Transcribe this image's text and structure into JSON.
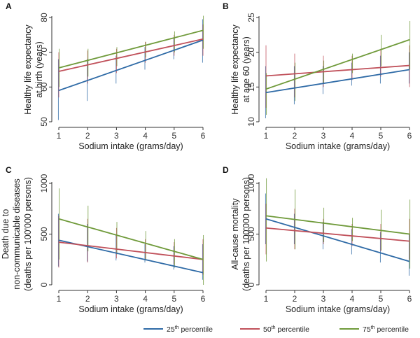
{
  "colors": {
    "p25": "#2e6aa6",
    "p50": "#c0505a",
    "p75": "#6f9a3a",
    "axis": "#333333"
  },
  "legend": {
    "position": "bottom",
    "entries": [
      {
        "key": "p25",
        "num": "25",
        "sup": "th",
        "rest": " percentile"
      },
      {
        "key": "p50",
        "num": "50",
        "sup": "th",
        "rest": " percentile"
      },
      {
        "key": "p75",
        "num": "75",
        "sup": "th",
        "rest": " percentile"
      }
    ]
  },
  "chart_data": [
    {
      "panel": "A",
      "type": "line",
      "xlabel": "Sodium intake (grams/day)",
      "ylabel_lines": [
        "Healthy life expectancy",
        "at birth (years)"
      ],
      "xlim": [
        1,
        6
      ],
      "ylim": [
        50,
        80
      ],
      "xticks": [
        1,
        2,
        3,
        4,
        5,
        6
      ],
      "yticks": [
        50,
        60,
        70,
        80
      ],
      "grid": false,
      "series": [
        {
          "key": "p25",
          "name": "25th percentile",
          "x": [
            1,
            6
          ],
          "y": [
            59,
            73.5
          ],
          "error_bars": [
            [
              1,
              50.5,
              68
            ],
            [
              2,
              56,
              68
            ],
            [
              3,
              61,
              69
            ],
            [
              4,
              65,
              71.5
            ],
            [
              5,
              68,
              74
            ],
            [
              6,
              67,
              79.5
            ]
          ]
        },
        {
          "key": "p50",
          "name": "50th percentile",
          "x": [
            1,
            6
          ],
          "y": [
            64.5,
            73.8
          ],
          "error_bars": [
            [
              1,
              57,
              70
            ],
            [
              2,
              61,
              70.5
            ],
            [
              3,
              64,
              71
            ],
            [
              4,
              67,
              73
            ],
            [
              5,
              69,
              75
            ],
            [
              6,
              69,
              78
            ]
          ]
        },
        {
          "key": "p75",
          "name": "75th percentile",
          "x": [
            1,
            6
          ],
          "y": [
            65.5,
            76.3
          ],
          "error_bars": [
            [
              1,
              60,
              71
            ],
            [
              2,
              63,
              71
            ],
            [
              3,
              66,
              71.5
            ],
            [
              4,
              68.5,
              73
            ],
            [
              5,
              70,
              76
            ],
            [
              6,
              71,
              80.5
            ]
          ]
        }
      ]
    },
    {
      "panel": "B",
      "type": "line",
      "xlabel": "Sodium intake (grams/day)",
      "ylabel_lines": [
        "Healthy life expectancy",
        "at age 60 (years)"
      ],
      "xlim": [
        1,
        6
      ],
      "ylim": [
        10,
        25
      ],
      "xticks": [
        1,
        2,
        3,
        4,
        5,
        6
      ],
      "yticks": [
        10,
        15,
        20,
        25
      ],
      "grid": false,
      "series": [
        {
          "key": "p25",
          "name": "25th percentile",
          "x": [
            1,
            6
          ],
          "y": [
            14.2,
            17.5
          ],
          "error_bars": [
            [
              1,
              10.5,
              18
            ],
            [
              2,
              12.5,
              18
            ],
            [
              3,
              14,
              18
            ],
            [
              4,
              15.2,
              18.5
            ],
            [
              5,
              15.5,
              19.5
            ],
            [
              6,
              15.5,
              20
            ]
          ]
        },
        {
          "key": "p50",
          "name": "50th percentile",
          "x": [
            1,
            6
          ],
          "y": [
            16.6,
            18.1
          ],
          "error_bars": [
            [
              1,
              12,
              21
            ],
            [
              2,
              13.5,
              19.8
            ],
            [
              3,
              15,
              19.5
            ],
            [
              4,
              16,
              19.5
            ],
            [
              5,
              16.5,
              20.5
            ],
            [
              6,
              15,
              21
            ]
          ]
        },
        {
          "key": "p75",
          "name": "75th percentile",
          "x": [
            1,
            6
          ],
          "y": [
            14.7,
            21.8
          ],
          "error_bars": [
            [
              1,
              11,
              17
            ],
            [
              2,
              13,
              18.5
            ],
            [
              3,
              15.5,
              18.8
            ],
            [
              4,
              17,
              19.8
            ],
            [
              5,
              18,
              22.5
            ],
            [
              6,
              17.5,
              24.5
            ]
          ]
        }
      ]
    },
    {
      "panel": "C",
      "type": "line",
      "xlabel": "Sodium intake (grams/day)",
      "ylabel_lines": [
        "Death due to",
        "non-communicable diseases",
        "(deaths per 100'000 persons)"
      ],
      "xlim": [
        1,
        6
      ],
      "ylim": [
        0,
        1000
      ],
      "xticks": [
        1,
        2,
        3,
        4,
        5,
        6
      ],
      "yticks": [
        0,
        500,
        1000
      ],
      "grid": false,
      "series": [
        {
          "key": "p25",
          "name": "25th percentile",
          "x": [
            1,
            6
          ],
          "y": [
            440,
            120
          ],
          "error_bars": [
            [
              1,
              180,
              700
            ],
            [
              2,
              230,
              600
            ],
            [
              3,
              240,
              500
            ],
            [
              4,
              220,
              400
            ],
            [
              5,
              150,
              380
            ],
            [
              6,
              50,
              400
            ]
          ]
        },
        {
          "key": "p50",
          "name": "50th percentile",
          "x": [
            1,
            6
          ],
          "y": [
            420,
            250
          ],
          "error_bars": [
            [
              1,
              170,
              680
            ],
            [
              2,
              220,
              650
            ],
            [
              3,
              260,
              560
            ],
            [
              4,
              250,
              450
            ],
            [
              5,
              200,
              420
            ],
            [
              6,
              100,
              450
            ]
          ]
        },
        {
          "key": "p75",
          "name": "75th percentile",
          "x": [
            1,
            6
          ],
          "y": [
            650,
            250
          ],
          "error_bars": [
            [
              1,
              250,
              950
            ],
            [
              2,
              330,
              780
            ],
            [
              3,
              300,
              620
            ],
            [
              4,
              240,
              530
            ],
            [
              5,
              170,
              450
            ],
            [
              6,
              0,
              490
            ]
          ]
        }
      ]
    },
    {
      "panel": "D",
      "type": "line",
      "xlabel": "Sodium intake (grams/day)",
      "ylabel_lines": [
        "All-cause mortality",
        "(deaths per 100'000 persons)"
      ],
      "xlim": [
        1,
        6
      ],
      "ylim": [
        0,
        1000
      ],
      "xticks": [
        1,
        2,
        3,
        4,
        5,
        6
      ],
      "yticks": [
        0,
        500,
        1000
      ],
      "grid": false,
      "series": [
        {
          "key": "p25",
          "name": "25th percentile",
          "x": [
            1,
            6
          ],
          "y": [
            650,
            230
          ],
          "error_bars": [
            [
              1,
              400,
              900
            ],
            [
              2,
              400,
              700
            ],
            [
              3,
              350,
              620
            ],
            [
              4,
              300,
              550
            ],
            [
              5,
              220,
              520
            ],
            [
              6,
              90,
              500
            ]
          ]
        },
        {
          "key": "p50",
          "name": "50th percentile",
          "x": [
            1,
            6
          ],
          "y": [
            560,
            430
          ],
          "error_bars": [
            [
              1,
              300,
              800
            ],
            [
              2,
              350,
              750
            ],
            [
              3,
              400,
              650
            ],
            [
              4,
              380,
              600
            ],
            [
              5,
              330,
              600
            ],
            [
              6,
              250,
              650
            ]
          ]
        },
        {
          "key": "p75",
          "name": "75th percentile",
          "x": [
            1,
            6
          ],
          "y": [
            680,
            500
          ],
          "error_bars": [
            [
              1,
              230,
              1120
            ],
            [
              2,
              350,
              940
            ],
            [
              3,
              420,
              760
            ],
            [
              4,
              430,
              660
            ],
            [
              5,
              340,
              740
            ],
            [
              6,
              160,
              840
            ]
          ]
        }
      ]
    }
  ]
}
